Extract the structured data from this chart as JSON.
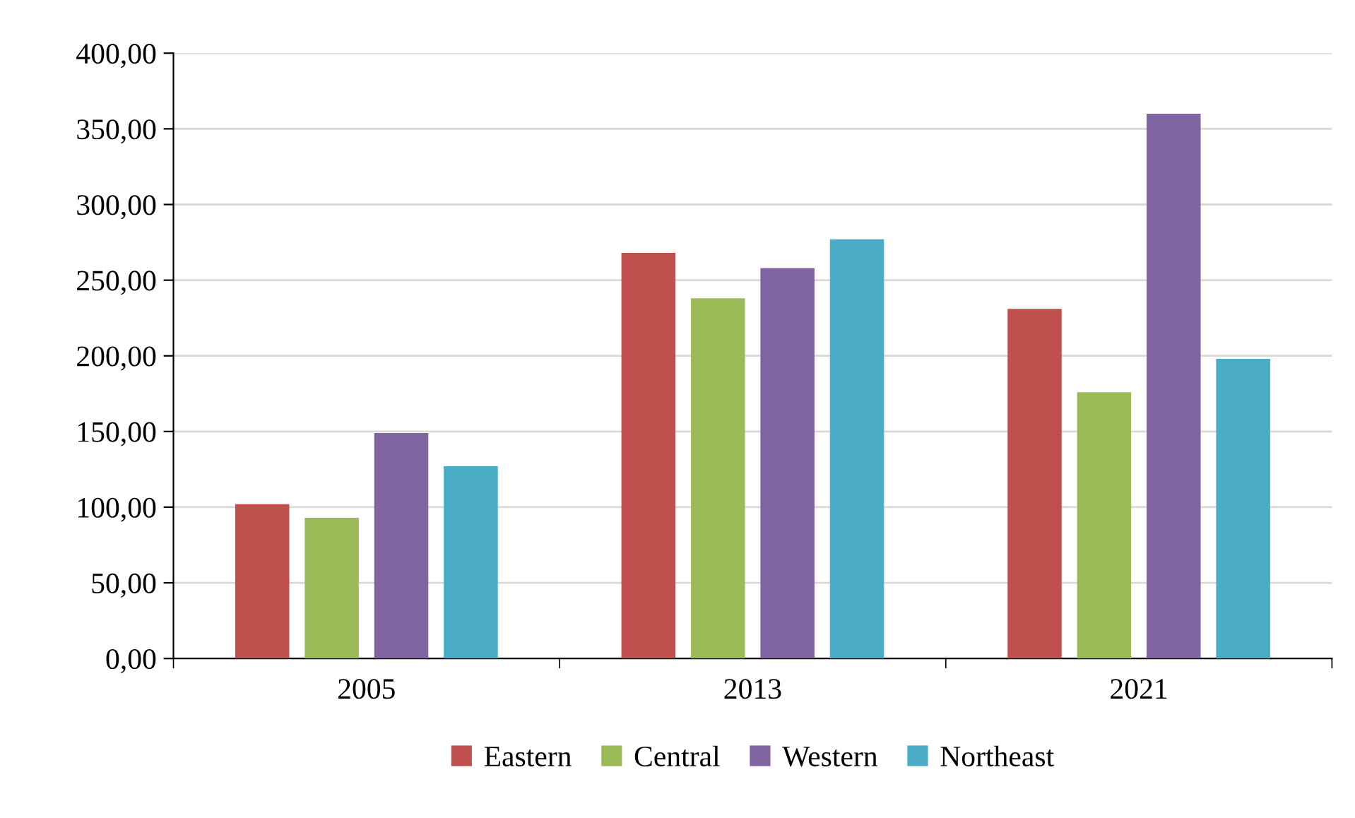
{
  "chart_data": {
    "type": "bar",
    "categories": [
      "2005",
      "2013",
      "2021"
    ],
    "series": [
      {
        "name": "Eastern",
        "color": "#c0504d",
        "values": [
          102,
          268,
          231
        ]
      },
      {
        "name": "Central",
        "color": "#9bbb59",
        "values": [
          93,
          238,
          176
        ]
      },
      {
        "name": "Western",
        "color": "#8064a2",
        "values": [
          149,
          258,
          360
        ]
      },
      {
        "name": "Northeast",
        "color": "#4bacc6",
        "values": [
          127,
          277,
          198
        ]
      }
    ],
    "ylim": [
      0,
      400
    ],
    "yticks": [
      {
        "value": 0,
        "label": "0,00"
      },
      {
        "value": 50,
        "label": "50,00"
      },
      {
        "value": 100,
        "label": "100,00"
      },
      {
        "value": 150,
        "label": "150,00"
      },
      {
        "value": 200,
        "label": "200,00"
      },
      {
        "value": 250,
        "label": "250,00"
      },
      {
        "value": 300,
        "label": "300,00"
      },
      {
        "value": 350,
        "label": "350,00"
      },
      {
        "value": 400,
        "label": "400,00"
      }
    ],
    "grid": "y",
    "legend": "bottom"
  }
}
